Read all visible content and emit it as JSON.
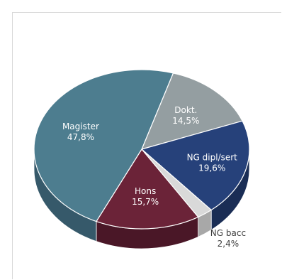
{
  "chart_data": {
    "type": "pie",
    "style": "3d",
    "slices": [
      {
        "label": "Dokt.",
        "value": 14.5,
        "display": "14,5%",
        "color": "#949ea1",
        "side": "#6f777a",
        "label_color": "#ffffff"
      },
      {
        "label": "NG dipl/sert",
        "value": 19.6,
        "display": "19,6%",
        "color": "#26417a",
        "side": "#1a2d55",
        "label_color": "#ffffff"
      },
      {
        "label": "NG bacc",
        "value": 2.4,
        "display": "2,4%",
        "color": "#d9d9d9",
        "side": "#a8a8a8",
        "label_color": "#404040"
      },
      {
        "label": "Hons",
        "value": 15.7,
        "display": "15,7%",
        "color": "#6b2338",
        "side": "#4a1727",
        "label_color": "#ffffff"
      },
      {
        "label": "Magister",
        "value": 47.8,
        "display": "47,8%",
        "color": "#4d7d8f",
        "side": "#36596a",
        "label_color": "#ffffff"
      }
    ]
  }
}
